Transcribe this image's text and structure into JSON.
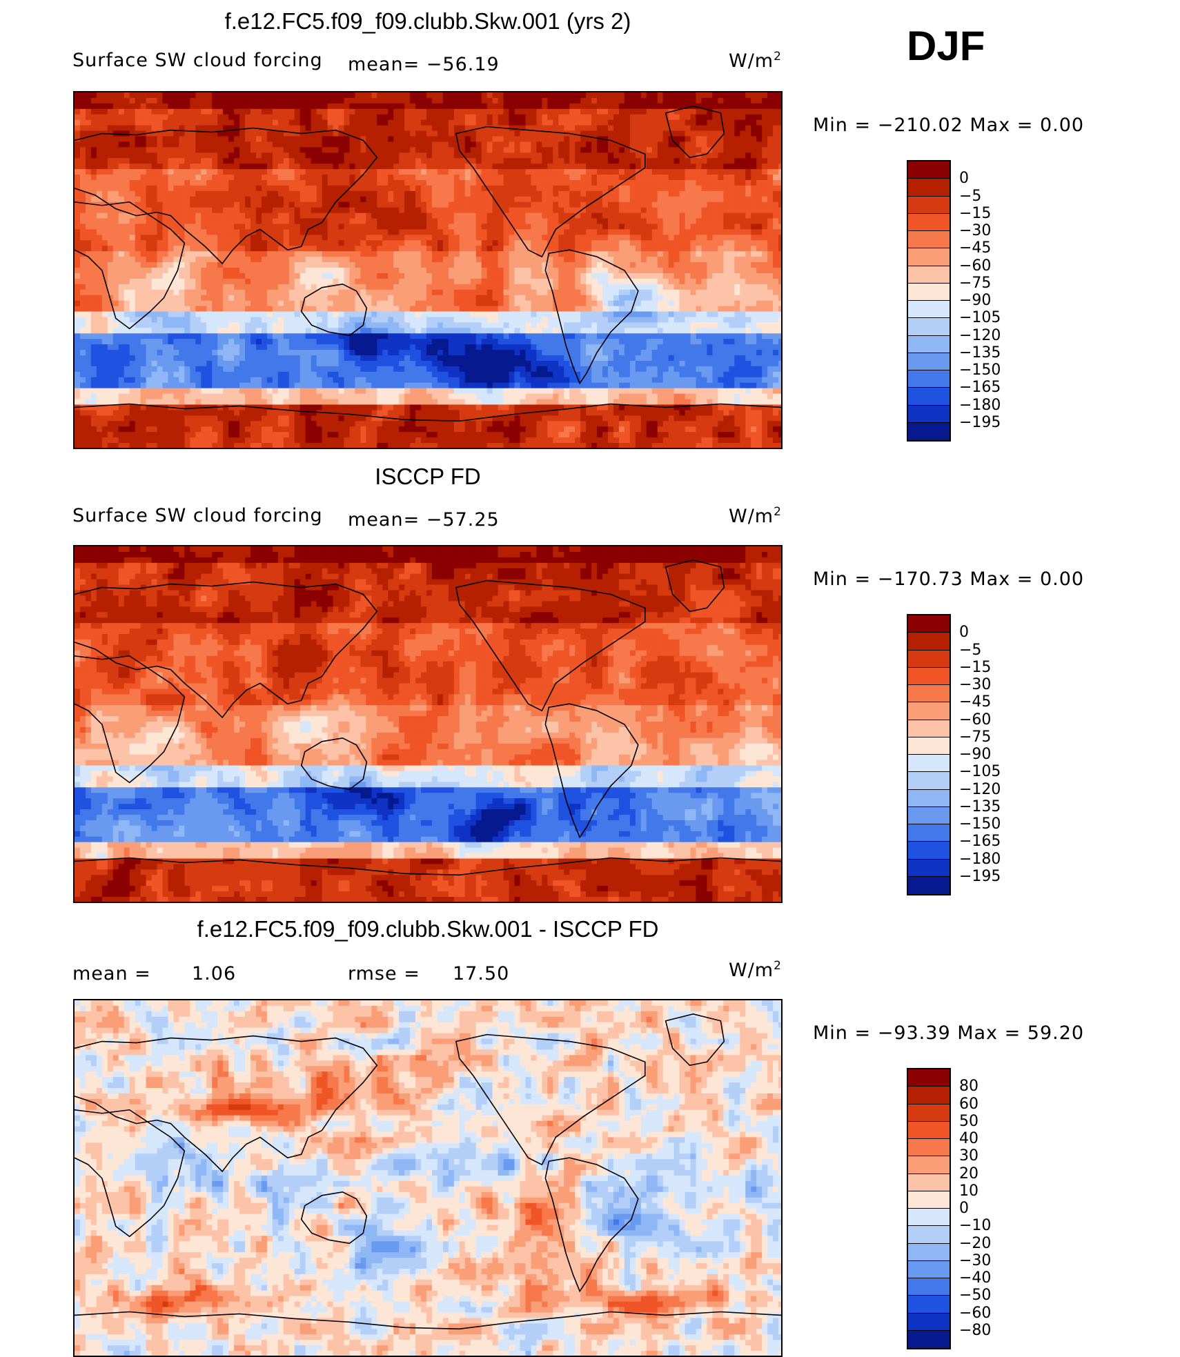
{
  "season": "DJF",
  "units": "W/m",
  "units_sup": "2",
  "panels": [
    {
      "title": "f.e12.FC5.f09_f09.clubb.Skw.001 (yrs 2)",
      "variable": "Surface SW cloud forcing",
      "mean_text": "mean= −56.19",
      "minmax_text": "Min  =  −210.02  Max  =     0.00",
      "legend": [
        "0",
        "−5",
        "−15",
        "−30",
        "−45",
        "−60",
        "−75",
        "−90",
        "−105",
        "−120",
        "−135",
        "−150",
        "−165",
        "−180",
        "−195"
      ]
    },
    {
      "title": "ISCCP FD",
      "variable": "Surface SW cloud forcing",
      "mean_text": "mean= −57.25",
      "minmax_text": "Min  =  −170.73  Max  =     0.00",
      "legend": [
        "0",
        "−5",
        "−15",
        "−30",
        "−45",
        "−60",
        "−75",
        "−90",
        "−105",
        "−120",
        "−135",
        "−150",
        "−165",
        "−180",
        "−195"
      ]
    },
    {
      "title": "f.e12.FC5.f09_f09.clubb.Skw.001 - ISCCP FD",
      "mean_label": "mean  =",
      "mean_value": "1.06",
      "rmse_label": "rmse  =",
      "rmse_value": "17.50",
      "minmax_text": "Min  =  −93.39  Max  =   59.20",
      "legend": [
        "80",
        "60",
        "50",
        "40",
        "30",
        "20",
        "10",
        "0",
        "−10",
        "−20",
        "−30",
        "−40",
        "−50",
        "−60",
        "−80"
      ]
    }
  ],
  "colors": {
    "scale16": [
      "#8b0000",
      "#b42000",
      "#d63a10",
      "#ef5527",
      "#f7784a",
      "#fa9e78",
      "#fcc3a8",
      "#fde6d6",
      "#d6e6fb",
      "#b3cff8",
      "#8fb6f5",
      "#6a9af0",
      "#4378ea",
      "#1f52e0",
      "#0f33c4",
      "#07198f"
    ],
    "land_line": "#000000"
  }
}
